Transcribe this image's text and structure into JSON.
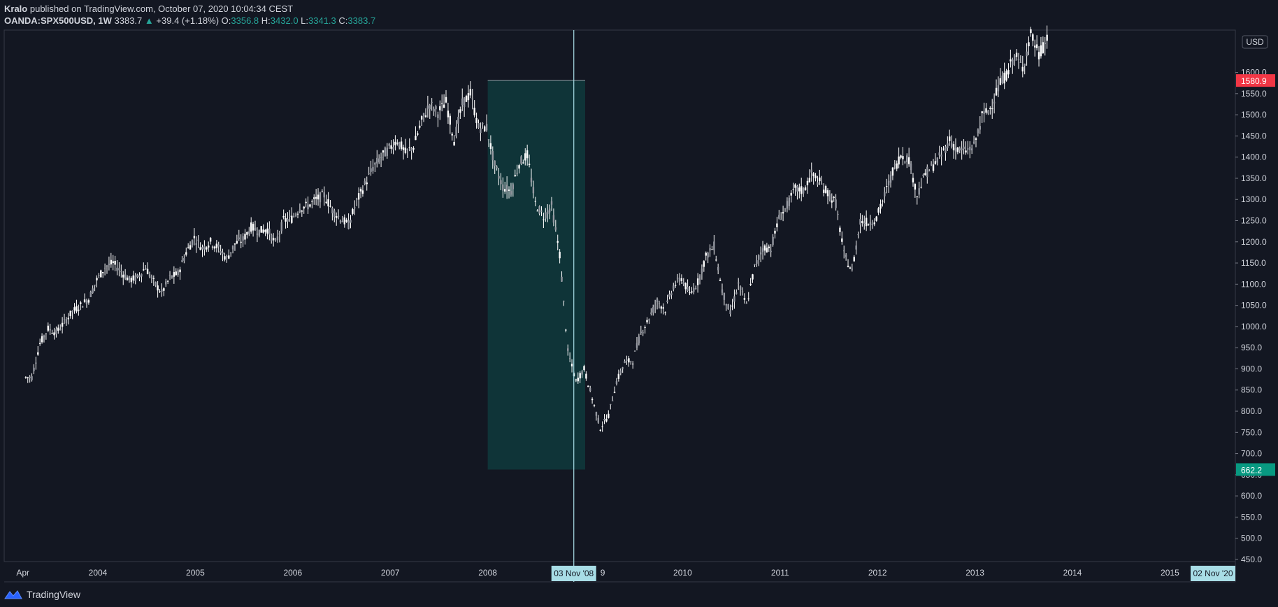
{
  "header": {
    "author": "Kralo",
    "published": "published on TradingView.com, October 07, 2020 10:04:34 CEST",
    "symbol": "OANDA:SPX500USD,",
    "interval": "1W",
    "last": "3383.7",
    "change": "+39.4 (+1.18%)",
    "o_label": "O:",
    "o": "3356.8",
    "h_label": "H:",
    "h": "3432.0",
    "l_label": "L:",
    "l": "3341.3",
    "c_label": "C:",
    "c": "3383.7"
  },
  "footer": {
    "brand": "TradingView"
  },
  "colors": {
    "background": "#131722",
    "candle": "#ffffff",
    "zone": "#0f3a3c",
    "crosshair": "#a8dde6",
    "high_badge": "#f23645",
    "low_badge": "#089981"
  },
  "chart_data": {
    "type": "candlestick",
    "currency": "USD",
    "ylim": [
      445,
      1700
    ],
    "y_ticks": [
      "450.0",
      "500.0",
      "550.0",
      "600.0",
      "650.0",
      "700.0",
      "750.0",
      "800.0",
      "850.0",
      "900.0",
      "950.0",
      "1000.0",
      "1050.0",
      "1100.0",
      "1150.0",
      "1200.0",
      "1250.0",
      "1300.0",
      "1350.0",
      "1400.0",
      "1450.0",
      "1500.0",
      "1550.0",
      "1600.0"
    ],
    "x_ticks": [
      {
        "label": "Apr",
        "year": 2003.23
      },
      {
        "label": "2004",
        "year": 2004
      },
      {
        "label": "2005",
        "year": 2005
      },
      {
        "label": "2006",
        "year": 2006
      },
      {
        "label": "2007",
        "year": 2007
      },
      {
        "label": "2008",
        "year": 2008
      },
      {
        "label": "2010",
        "year": 2010
      },
      {
        "label": "2011",
        "year": 2011
      },
      {
        "label": "2012",
        "year": 2012
      },
      {
        "label": "2013",
        "year": 2013
      },
      {
        "label": "2014",
        "year": 2014
      },
      {
        "label": "2015",
        "year": 2015
      }
    ],
    "series": [
      {
        "date": "2003-04",
        "close": 880
      },
      {
        "date": "2003-05",
        "close": 960
      },
      {
        "date": "2003-06",
        "close": 995
      },
      {
        "date": "2003-07",
        "close": 985
      },
      {
        "date": "2003-08",
        "close": 1010
      },
      {
        "date": "2003-09",
        "close": 1035
      },
      {
        "date": "2003-10",
        "close": 1050
      },
      {
        "date": "2003-11",
        "close": 1065
      },
      {
        "date": "2003-12",
        "close": 1110
      },
      {
        "date": "2004-01",
        "close": 1140
      },
      {
        "date": "2004-02",
        "close": 1150
      },
      {
        "date": "2004-03",
        "close": 1130
      },
      {
        "date": "2004-04",
        "close": 1110
      },
      {
        "date": "2004-05",
        "close": 1115
      },
      {
        "date": "2004-06",
        "close": 1140
      },
      {
        "date": "2004-07",
        "close": 1105
      },
      {
        "date": "2004-08",
        "close": 1080
      },
      {
        "date": "2004-09",
        "close": 1115
      },
      {
        "date": "2004-10",
        "close": 1125
      },
      {
        "date": "2004-11",
        "close": 1175
      },
      {
        "date": "2004-12",
        "close": 1210
      },
      {
        "date": "2005-01",
        "close": 1185
      },
      {
        "date": "2005-02",
        "close": 1200
      },
      {
        "date": "2005-03",
        "close": 1185
      },
      {
        "date": "2005-04",
        "close": 1160
      },
      {
        "date": "2005-05",
        "close": 1195
      },
      {
        "date": "2005-06",
        "close": 1205
      },
      {
        "date": "2005-07",
        "close": 1235
      },
      {
        "date": "2005-08",
        "close": 1225
      },
      {
        "date": "2005-09",
        "close": 1230
      },
      {
        "date": "2005-10",
        "close": 1195
      },
      {
        "date": "2005-11",
        "close": 1250
      },
      {
        "date": "2005-12",
        "close": 1255
      },
      {
        "date": "2006-01",
        "close": 1280
      },
      {
        "date": "2006-02",
        "close": 1285
      },
      {
        "date": "2006-03",
        "close": 1300
      },
      {
        "date": "2006-04",
        "close": 1310
      },
      {
        "date": "2006-05",
        "close": 1275
      },
      {
        "date": "2006-06",
        "close": 1255
      },
      {
        "date": "2006-07",
        "close": 1240
      },
      {
        "date": "2006-08",
        "close": 1295
      },
      {
        "date": "2006-09",
        "close": 1335
      },
      {
        "date": "2006-10",
        "close": 1375
      },
      {
        "date": "2006-11",
        "close": 1400
      },
      {
        "date": "2006-12",
        "close": 1420
      },
      {
        "date": "2007-01",
        "close": 1440
      },
      {
        "date": "2007-02",
        "close": 1410
      },
      {
        "date": "2007-03",
        "close": 1425
      },
      {
        "date": "2007-04",
        "close": 1485
      },
      {
        "date": "2007-05",
        "close": 1525
      },
      {
        "date": "2007-06",
        "close": 1505
      },
      {
        "date": "2007-07",
        "close": 1530
      },
      {
        "date": "2007-08",
        "close": 1440
      },
      {
        "date": "2007-09",
        "close": 1525
      },
      {
        "date": "2007-10",
        "close": 1550
      },
      {
        "date": "2007-11",
        "close": 1470
      },
      {
        "date": "2007-12",
        "close": 1470
      },
      {
        "date": "2008-01",
        "close": 1380
      },
      {
        "date": "2008-02",
        "close": 1330
      },
      {
        "date": "2008-03",
        "close": 1320
      },
      {
        "date": "2008-04",
        "close": 1385
      },
      {
        "date": "2008-05",
        "close": 1405
      },
      {
        "date": "2008-06",
        "close": 1290
      },
      {
        "date": "2008-07",
        "close": 1260
      },
      {
        "date": "2008-08",
        "close": 1285
      },
      {
        "date": "2008-09",
        "close": 1170
      },
      {
        "date": "2008-10",
        "close": 940
      },
      {
        "date": "2008-11",
        "close": 870
      },
      {
        "date": "2008-12",
        "close": 900
      },
      {
        "date": "2009-01",
        "close": 830
      },
      {
        "date": "2009-02",
        "close": 760
      },
      {
        "date": "2009-03",
        "close": 790
      },
      {
        "date": "2009-04",
        "close": 870
      },
      {
        "date": "2009-05",
        "close": 915
      },
      {
        "date": "2009-06",
        "close": 920
      },
      {
        "date": "2009-07",
        "close": 985
      },
      {
        "date": "2009-08",
        "close": 1020
      },
      {
        "date": "2009-09",
        "close": 1060
      },
      {
        "date": "2009-10",
        "close": 1040
      },
      {
        "date": "2009-11",
        "close": 1095
      },
      {
        "date": "2009-12",
        "close": 1115
      },
      {
        "date": "2010-01",
        "close": 1075
      },
      {
        "date": "2010-02",
        "close": 1105
      },
      {
        "date": "2010-03",
        "close": 1165
      },
      {
        "date": "2010-04",
        "close": 1190
      },
      {
        "date": "2010-05",
        "close": 1085
      },
      {
        "date": "2010-06",
        "close": 1030
      },
      {
        "date": "2010-07",
        "close": 1100
      },
      {
        "date": "2010-08",
        "close": 1050
      },
      {
        "date": "2010-09",
        "close": 1140
      },
      {
        "date": "2010-10",
        "close": 1185
      },
      {
        "date": "2010-11",
        "close": 1185
      },
      {
        "date": "2010-12",
        "close": 1255
      },
      {
        "date": "2011-01",
        "close": 1285
      },
      {
        "date": "2011-02",
        "close": 1325
      },
      {
        "date": "2011-03",
        "close": 1320
      },
      {
        "date": "2011-04",
        "close": 1360
      },
      {
        "date": "2011-05",
        "close": 1340
      },
      {
        "date": "2011-06",
        "close": 1315
      },
      {
        "date": "2011-07",
        "close": 1290
      },
      {
        "date": "2011-08",
        "close": 1170
      },
      {
        "date": "2011-09",
        "close": 1130
      },
      {
        "date": "2011-10",
        "close": 1250
      },
      {
        "date": "2011-11",
        "close": 1245
      },
      {
        "date": "2011-12",
        "close": 1255
      },
      {
        "date": "2012-01",
        "close": 1310
      },
      {
        "date": "2012-02",
        "close": 1365
      },
      {
        "date": "2012-03",
        "close": 1405
      },
      {
        "date": "2012-04",
        "close": 1395
      },
      {
        "date": "2012-05",
        "close": 1310
      },
      {
        "date": "2012-06",
        "close": 1360
      },
      {
        "date": "2012-07",
        "close": 1380
      },
      {
        "date": "2012-08",
        "close": 1405
      },
      {
        "date": "2012-09",
        "close": 1440
      },
      {
        "date": "2012-10",
        "close": 1415
      },
      {
        "date": "2012-11",
        "close": 1415
      },
      {
        "date": "2012-12",
        "close": 1425
      },
      {
        "date": "2013-01",
        "close": 1495
      },
      {
        "date": "2013-02",
        "close": 1515
      },
      {
        "date": "2013-03",
        "close": 1565
      },
      {
        "date": "2013-04",
        "close": 1595
      },
      {
        "date": "2013-05",
        "close": 1640
      },
      {
        "date": "2013-06",
        "close": 1610
      },
      {
        "date": "2013-07",
        "close": 1690
      },
      {
        "date": "2013-08",
        "close": 1640
      },
      {
        "date": "2013-09",
        "close": 1680
      }
    ],
    "zone": {
      "start_date": "2008-01",
      "end_date": "2008-12",
      "top": 1580.9,
      "bottom": 662.2
    },
    "badges": {
      "high": "1580.9",
      "low": "662.2"
    },
    "crosshair_label": "03 Nov '08",
    "crosshair_date": "2008-11",
    "right_date_label": "02 Nov '20"
  }
}
